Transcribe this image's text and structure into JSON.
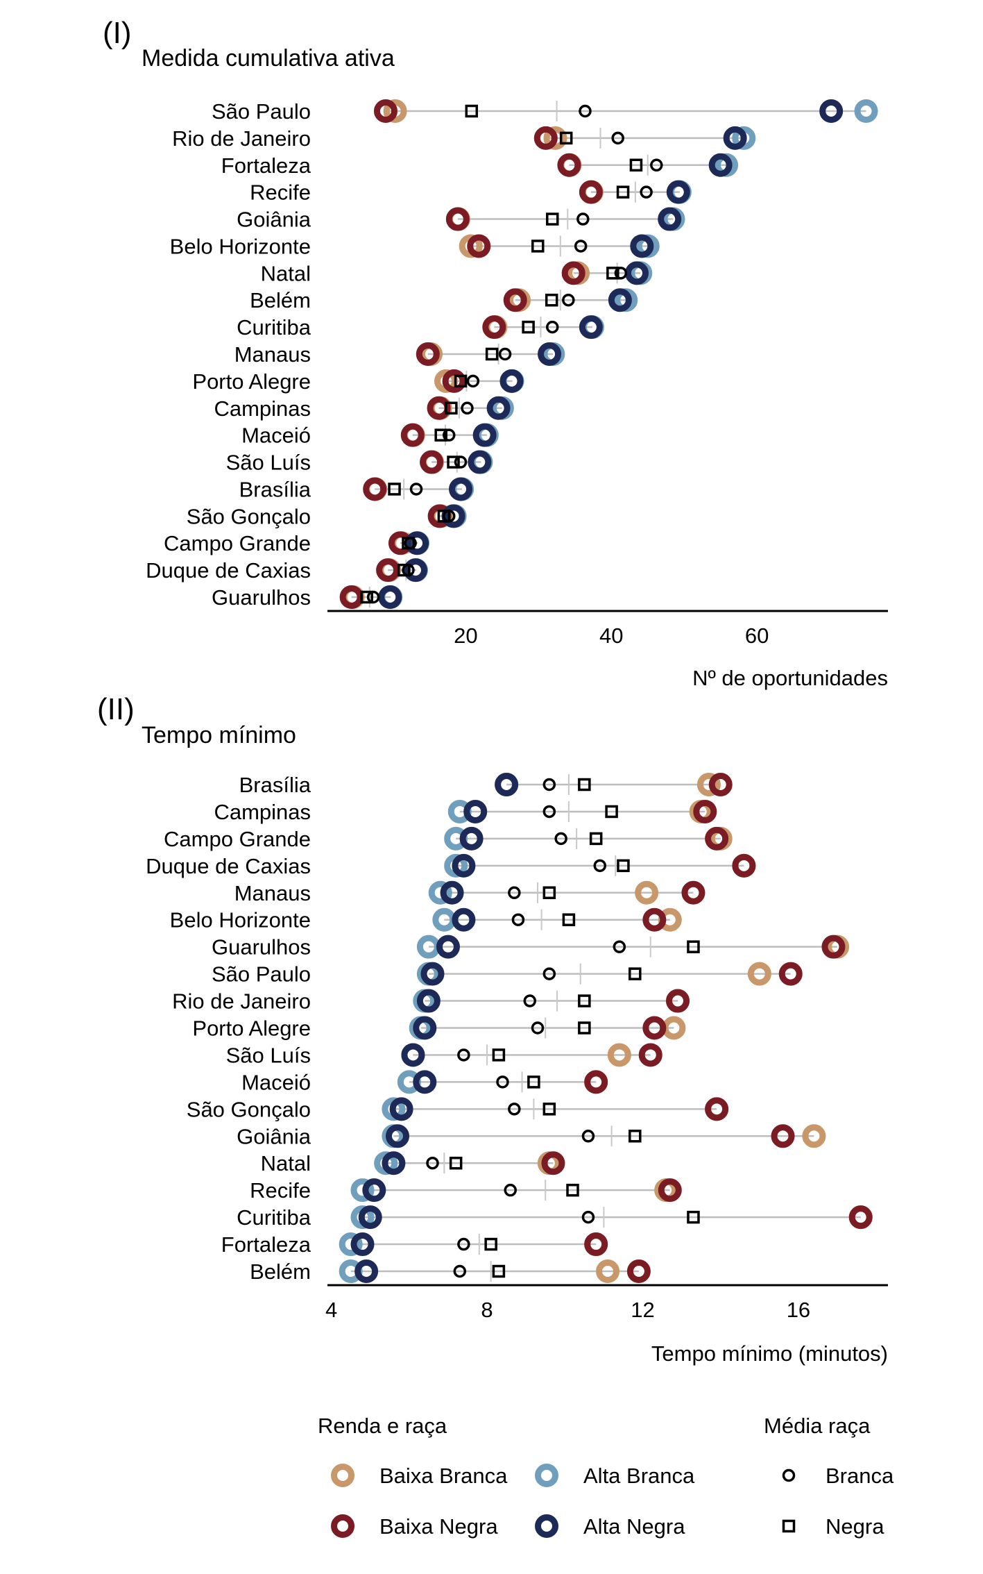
{
  "colors": {
    "baixa_branca": "#c8976a",
    "alta_branca": "#6f9fbd",
    "baixa_negra": "#7b1c24",
    "alta_negra": "#1d2a57",
    "segment": "#bdbdbd",
    "mean_tick": "#c8c8c8",
    "marker": "#000000"
  },
  "legend": {
    "title_left": "Renda e raça",
    "title_right": "Média raça",
    "items": [
      {
        "key": "baixa_branca",
        "label": "Baixa Branca",
        "shape": "ring"
      },
      {
        "key": "alta_branca",
        "label": "Alta Branca",
        "shape": "ring"
      },
      {
        "key": "branca",
        "label": "Branca",
        "shape": "circle"
      },
      {
        "key": "baixa_negra",
        "label": "Baixa Negra",
        "shape": "ring"
      },
      {
        "key": "alta_negra",
        "label": "Alta Negra",
        "shape": "ring"
      },
      {
        "key": "negra",
        "label": "Negra",
        "shape": "square"
      }
    ]
  },
  "chart_data": [
    {
      "type": "scatter",
      "panel": "(I)",
      "title": "Medida cumulativa ativa",
      "xlabel": "Nº de oportunidades",
      "ylabel": "",
      "xlim": [
        1,
        78
      ],
      "xticks": [
        20,
        40,
        60
      ],
      "series_keys": [
        "baixa_branca",
        "alta_branca",
        "baixa_negra",
        "alta_negra",
        "media_branca",
        "media_negra",
        "media_geral"
      ],
      "rows": [
        {
          "city": "São Paulo",
          "baixa_branca": 10.3,
          "alta_branca": 75.0,
          "baixa_negra": 9.0,
          "alta_negra": 70.2,
          "media_branca": 36.4,
          "media_negra": 20.8,
          "media_geral": 32.5
        },
        {
          "city": "Rio de Janeiro",
          "baixa_branca": 32.3,
          "alta_branca": 58.2,
          "baixa_negra": 31.0,
          "alta_negra": 57.0,
          "media_branca": 40.9,
          "media_negra": 33.8,
          "media_geral": 38.5
        },
        {
          "city": "Fortaleza",
          "baixa_branca": 34.3,
          "alta_branca": 55.8,
          "baixa_negra": 34.2,
          "alta_negra": 55.0,
          "media_branca": 46.2,
          "media_negra": 43.4,
          "media_geral": 45.0
        },
        {
          "city": "Recife",
          "baixa_branca": 37.3,
          "alta_branca": 49.4,
          "baixa_negra": 37.2,
          "alta_negra": 49.2,
          "media_branca": 44.8,
          "media_negra": 41.6,
          "media_geral": 43.3
        },
        {
          "city": "Goiânia",
          "baixa_branca": 19.0,
          "alta_branca": 48.5,
          "baixa_negra": 18.9,
          "alta_negra": 48.0,
          "media_branca": 36.1,
          "media_negra": 31.9,
          "media_geral": 34.0
        },
        {
          "city": "Belo Horizonte",
          "baixa_branca": 20.7,
          "alta_branca": 45.0,
          "baixa_negra": 21.8,
          "alta_negra": 44.2,
          "media_branca": 35.8,
          "media_negra": 29.9,
          "media_geral": 33.0
        },
        {
          "city": "Natal",
          "baixa_branca": 35.4,
          "alta_branca": 44.0,
          "baixa_negra": 34.8,
          "alta_negra": 43.5,
          "media_branca": 41.3,
          "media_negra": 40.2,
          "media_geral": 40.8
        },
        {
          "city": "Belém",
          "baixa_branca": 27.3,
          "alta_branca": 42.0,
          "baixa_negra": 26.8,
          "alta_negra": 41.2,
          "media_branca": 34.1,
          "media_negra": 31.8,
          "media_geral": 33.0
        },
        {
          "city": "Curitiba",
          "baixa_branca": 24.1,
          "alta_branca": 37.4,
          "baixa_negra": 23.9,
          "alta_negra": 37.2,
          "media_branca": 31.9,
          "media_negra": 28.6,
          "media_geral": 30.3
        },
        {
          "city": "Manaus",
          "baixa_branca": 15.2,
          "alta_branca": 32.0,
          "baixa_negra": 14.8,
          "alta_negra": 31.5,
          "media_branca": 25.4,
          "media_negra": 23.6,
          "media_geral": 24.5
        },
        {
          "city": "Porto Alegre",
          "baixa_branca": 17.3,
          "alta_branca": 26.4,
          "baixa_negra": 18.4,
          "alta_negra": 26.3,
          "media_branca": 21.0,
          "media_negra": 19.3,
          "media_geral": 20.1
        },
        {
          "city": "Campinas",
          "baixa_branca": 16.5,
          "alta_branca": 25.0,
          "baixa_negra": 16.3,
          "alta_negra": 24.5,
          "media_branca": 20.2,
          "media_negra": 18.0,
          "media_geral": 19.1
        },
        {
          "city": "Maceió",
          "baixa_branca": 12.8,
          "alta_branca": 22.9,
          "baixa_negra": 12.7,
          "alta_negra": 22.6,
          "media_branca": 17.7,
          "media_negra": 16.6,
          "media_geral": 17.2
        },
        {
          "city": "São Luís",
          "baixa_branca": 15.4,
          "alta_branca": 22.1,
          "baixa_negra": 15.3,
          "alta_negra": 21.9,
          "media_branca": 19.3,
          "media_negra": 18.3,
          "media_geral": 18.8
        },
        {
          "city": "Brasília",
          "baixa_branca": 7.6,
          "alta_branca": 19.5,
          "baixa_negra": 7.5,
          "alta_negra": 19.3,
          "media_branca": 13.2,
          "media_negra": 10.2,
          "media_geral": 11.5
        },
        {
          "city": "São Gonçalo",
          "baixa_branca": 16.6,
          "alta_branca": 18.5,
          "baixa_negra": 16.4,
          "alta_negra": 18.3,
          "media_branca": 17.7,
          "media_negra": 17.0,
          "media_geral": 17.4
        },
        {
          "city": "Campo Grande",
          "baixa_branca": 11.2,
          "alta_branca": 13.4,
          "baixa_negra": 11.0,
          "alta_negra": 13.3,
          "media_branca": 12.4,
          "media_negra": 12.1,
          "media_geral": 12.2
        },
        {
          "city": "Duque de Caxias",
          "baixa_branca": 9.5,
          "alta_branca": 13.2,
          "baixa_negra": 9.3,
          "alta_negra": 13.1,
          "media_branca": 12.1,
          "media_negra": 11.5,
          "media_geral": 11.8
        },
        {
          "city": "Guarulhos",
          "baixa_branca": 4.5,
          "alta_branca": 9.7,
          "baixa_negra": 4.3,
          "alta_negra": 9.6,
          "media_branca": 7.3,
          "media_negra": 6.4,
          "media_geral": 6.8
        }
      ]
    },
    {
      "type": "scatter",
      "panel": "(II)",
      "title": "Tempo mínimo",
      "xlabel": "Tempo mínimo (minutos)",
      "ylabel": "",
      "xlim": [
        3.9,
        18.3
      ],
      "xticks": [
        4,
        8,
        12,
        16
      ],
      "series_keys": [
        "baixa_branca",
        "alta_branca",
        "baixa_negra",
        "alta_negra",
        "media_branca",
        "media_negra",
        "media_geral"
      ],
      "rows": [
        {
          "city": "Brasília",
          "baixa_branca": 13.7,
          "alta_branca": 8.5,
          "baixa_negra": 14.0,
          "alta_negra": 8.5,
          "media_branca": 9.6,
          "media_negra": 10.5,
          "media_geral": 10.1
        },
        {
          "city": "Campinas",
          "baixa_branca": 13.5,
          "alta_branca": 7.3,
          "baixa_negra": 13.6,
          "alta_negra": 7.7,
          "media_branca": 9.6,
          "media_negra": 11.2,
          "media_geral": 10.1
        },
        {
          "city": "Campo Grande",
          "baixa_branca": 14.0,
          "alta_branca": 7.2,
          "baixa_negra": 13.9,
          "alta_negra": 7.6,
          "media_branca": 9.9,
          "media_negra": 10.8,
          "media_geral": 10.3
        },
        {
          "city": "Duque de Caxias",
          "baixa_branca": 14.6,
          "alta_branca": 7.2,
          "baixa_negra": 14.6,
          "alta_negra": 7.4,
          "media_branca": 10.9,
          "media_negra": 11.5,
          "media_geral": 11.3
        },
        {
          "city": "Manaus",
          "baixa_branca": 12.1,
          "alta_branca": 6.8,
          "baixa_negra": 13.3,
          "alta_negra": 7.1,
          "media_branca": 8.7,
          "media_negra": 9.6,
          "media_geral": 9.3
        },
        {
          "city": "Belo Horizonte",
          "baixa_branca": 12.7,
          "alta_branca": 6.9,
          "baixa_negra": 12.3,
          "alta_negra": 7.4,
          "media_branca": 8.8,
          "media_negra": 10.1,
          "media_geral": 9.4
        },
        {
          "city": "Guarulhos",
          "baixa_branca": 17.0,
          "alta_branca": 6.5,
          "baixa_negra": 16.9,
          "alta_negra": 7.0,
          "media_branca": 11.4,
          "media_negra": 13.3,
          "media_geral": 12.2
        },
        {
          "city": "São Paulo",
          "baixa_branca": 15.0,
          "alta_branca": 6.5,
          "baixa_negra": 15.8,
          "alta_negra": 6.6,
          "media_branca": 9.6,
          "media_negra": 11.8,
          "media_geral": 10.4
        },
        {
          "city": "Rio de Janeiro",
          "baixa_branca": 12.9,
          "alta_branca": 6.4,
          "baixa_negra": 12.9,
          "alta_negra": 6.5,
          "media_branca": 9.1,
          "media_negra": 10.5,
          "media_geral": 9.8
        },
        {
          "city": "Porto Alegre",
          "baixa_branca": 12.8,
          "alta_branca": 6.3,
          "baixa_negra": 12.3,
          "alta_negra": 6.4,
          "media_branca": 9.3,
          "media_negra": 10.5,
          "media_geral": 9.5
        },
        {
          "city": "São Luís",
          "baixa_branca": 11.4,
          "alta_branca": 6.1,
          "baixa_negra": 12.2,
          "alta_negra": 6.1,
          "media_branca": 7.4,
          "media_negra": 8.3,
          "media_geral": 8.0
        },
        {
          "city": "Maceió",
          "baixa_branca": 10.8,
          "alta_branca": 6.0,
          "baixa_negra": 10.8,
          "alta_negra": 6.4,
          "media_branca": 8.4,
          "media_negra": 9.2,
          "media_geral": 8.9
        },
        {
          "city": "São Gonçalo",
          "baixa_branca": 13.9,
          "alta_branca": 5.6,
          "baixa_negra": 13.9,
          "alta_negra": 5.8,
          "media_branca": 8.7,
          "media_negra": 9.6,
          "media_geral": 9.2
        },
        {
          "city": "Goiânia",
          "baixa_branca": 16.4,
          "alta_branca": 5.6,
          "baixa_negra": 15.6,
          "alta_negra": 5.7,
          "media_branca": 10.6,
          "media_negra": 11.8,
          "media_geral": 11.2
        },
        {
          "city": "Natal",
          "baixa_branca": 9.6,
          "alta_branca": 5.4,
          "baixa_negra": 9.7,
          "alta_negra": 5.6,
          "media_branca": 6.6,
          "media_negra": 7.2,
          "media_geral": 6.9
        },
        {
          "city": "Recife",
          "baixa_branca": 12.6,
          "alta_branca": 4.8,
          "baixa_negra": 12.7,
          "alta_negra": 5.1,
          "media_branca": 8.6,
          "media_negra": 10.2,
          "media_geral": 9.5
        },
        {
          "city": "Curitiba",
          "baixa_branca": 17.6,
          "alta_branca": 4.8,
          "baixa_negra": 17.6,
          "alta_negra": 5.0,
          "media_branca": 10.6,
          "media_negra": 13.3,
          "media_geral": 11.0
        },
        {
          "city": "Fortaleza",
          "baixa_branca": 10.8,
          "alta_branca": 4.5,
          "baixa_negra": 10.8,
          "alta_negra": 4.8,
          "media_branca": 7.4,
          "media_negra": 8.1,
          "media_geral": 7.8
        },
        {
          "city": "Belém",
          "baixa_branca": 11.1,
          "alta_branca": 4.5,
          "baixa_negra": 11.9,
          "alta_negra": 4.9,
          "media_branca": 7.3,
          "media_negra": 8.3,
          "media_geral": 8.1
        }
      ]
    }
  ]
}
